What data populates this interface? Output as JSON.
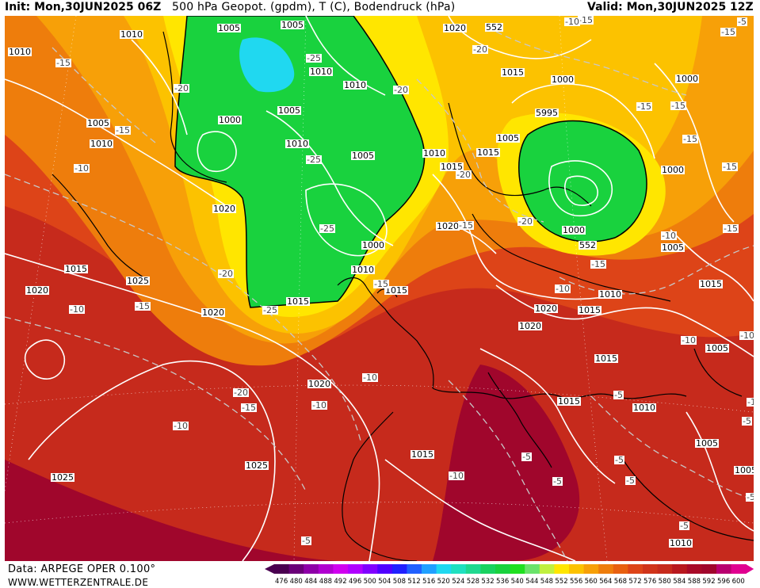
{
  "header": {
    "init": "Init: Mon,30JUN2025 06Z",
    "title": "500 hPa Geopot. (gpdm), T (C), Bodendruck (hPa)",
    "valid": "Valid: Mon,30JUN2025 12Z"
  },
  "footer": {
    "model": "Data: ARPEGE OPER 0.100°",
    "site": "WWW.WETTERZENTRALE.DE"
  },
  "colors": {
    "deep_red": "#a0062c",
    "red": "#c62a1c",
    "red_orange": "#dd4418",
    "orange": "#ee7d0c",
    "amber": "#f7a008",
    "gold": "#fcc200",
    "yellow": "#ffe600",
    "light_green": "#6be36b",
    "green": "#19d23e",
    "cyan": "#20d8f0",
    "isobar": "#ffffff",
    "coastline": "#000000",
    "isotherm": "#c8c8c8"
  },
  "colorbar": {
    "ticks": [
      "476",
      "480",
      "484",
      "488",
      "492",
      "496",
      "500",
      "504",
      "508",
      "512",
      "516",
      "520",
      "524",
      "528",
      "532",
      "536",
      "540",
      "544",
      "548",
      "552",
      "556",
      "560",
      "564",
      "568",
      "572",
      "576",
      "580",
      "584",
      "588",
      "592",
      "596",
      "600"
    ],
    "colors": [
      "#4a0050",
      "#6a0078",
      "#8e00a8",
      "#b000d0",
      "#d000f0",
      "#b000ff",
      "#8000ff",
      "#5000ff",
      "#2020ff",
      "#2060ff",
      "#20a0ff",
      "#20d8f0",
      "#20e0c0",
      "#20d890",
      "#19d260",
      "#19d23e",
      "#20e020",
      "#6be36b",
      "#c0f040",
      "#ffe600",
      "#fcc200",
      "#f7a008",
      "#ee7d0c",
      "#e86010",
      "#dd4418",
      "#d0341a",
      "#c62a1c",
      "#b8181e",
      "#a80a28",
      "#a0062c",
      "#b80070",
      "#e00090"
    ]
  },
  "map": {
    "pressure_labels": [
      "1005",
      "1005",
      "1020",
      "552",
      "1010",
      "1010",
      "1015",
      "1000",
      "1000",
      "1010",
      "1010",
      "1000",
      "1005",
      "5995",
      "1005",
      "1005",
      "1015",
      "1010",
      "1000",
      "1010",
      "1010",
      "1020",
      "1015",
      "1025",
      "1000",
      "552",
      "1015",
      "1020",
      "1015",
      "1010",
      "1005",
      "1000",
      "1020",
      "1020",
      "1015",
      "1015",
      "1020",
      "1020",
      "1005",
      "1015",
      "1010",
      "1015",
      "1005",
      "1025",
      "1025",
      "1020",
      "1015",
      "1015",
      "1010",
      "1005",
      "1005",
      "1010"
    ],
    "temp_labels": [
      "-15",
      "-15",
      "-20",
      "-25",
      "-25",
      "-20",
      "-20",
      "-15",
      "-15",
      "-10",
      "-25",
      "-20",
      "-20",
      "-25",
      "-15",
      "-15",
      "-20",
      "-15",
      "-10",
      "-15",
      "-10",
      "-10",
      "-10",
      "-15",
      "-20",
      "-15",
      "-10",
      "-10",
      "-15",
      "-10",
      "-5",
      "-10",
      "-5",
      "-5",
      "-10",
      "-5",
      "-5",
      "-5",
      "-5",
      "-10",
      "-15",
      "-5",
      "-10",
      "-15",
      "-15",
      "-5",
      "-5"
    ]
  }
}
